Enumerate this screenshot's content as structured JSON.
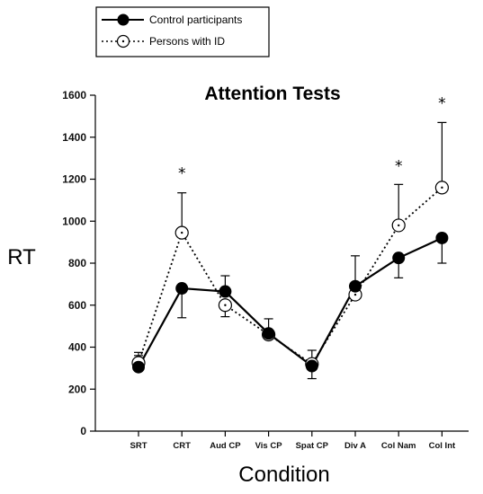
{
  "chart_data": {
    "type": "line",
    "title": "Attention Tests",
    "xlabel": "Condition",
    "ylabel": "RT",
    "categories": [
      "SRT",
      "CRT",
      "Aud CP",
      "Vis CP",
      "Spat CP",
      "Div A",
      "Col Nam",
      "Col Int"
    ],
    "ylim": [
      0,
      1600
    ],
    "yticks": [
      "0",
      "200",
      "400",
      "600",
      "800",
      "1000",
      "1200",
      "1400",
      "1600"
    ],
    "grid": false,
    "legend_position": "top-left",
    "series": [
      {
        "name": "Control participants",
        "values": [
          305,
          680,
          665,
          465,
          310,
          690,
          825,
          920
        ],
        "error_upper": [
          360,
          540,
          740,
          535,
          250,
          835,
          730,
          800
        ],
        "marker": "filled-circle",
        "line_style": "solid"
      },
      {
        "name": "Persons with ID",
        "values": [
          325,
          945,
          600,
          460,
          320,
          650,
          980,
          1160
        ],
        "error_upper": [
          375,
          1135,
          545,
          460,
          385,
          660,
          1175,
          1470
        ],
        "marker": "open-circle-dot",
        "line_style": "dotted"
      }
    ],
    "annotations": [
      {
        "category": "CRT",
        "text": "*",
        "y": 1255
      },
      {
        "category": "Col Nam",
        "text": "*",
        "y": 1290
      },
      {
        "category": "Col Int",
        "text": "*",
        "y": 1590
      }
    ]
  }
}
